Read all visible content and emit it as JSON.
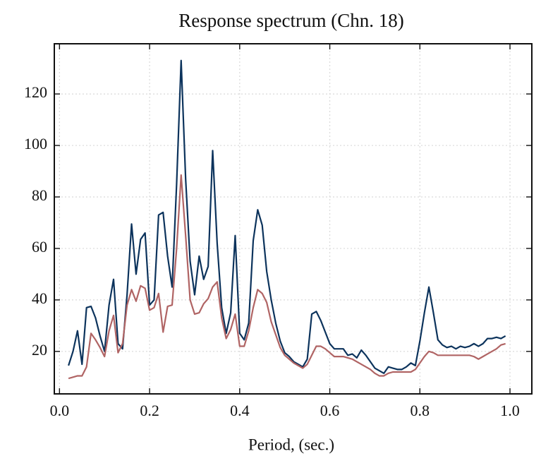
{
  "chart_data": {
    "type": "line",
    "title": "Response spectrum (Chn. 18)",
    "x_label": "Period, (sec.)",
    "x": [
      0.02,
      0.03,
      0.04,
      0.05,
      0.06,
      0.07,
      0.08,
      0.09,
      0.1,
      0.11,
      0.12,
      0.13,
      0.14,
      0.15,
      0.16,
      0.17,
      0.18,
      0.19,
      0.2,
      0.21,
      0.22,
      0.23,
      0.24,
      0.25,
      0.26,
      0.27,
      0.28,
      0.29,
      0.3,
      0.31,
      0.32,
      0.33,
      0.34,
      0.35,
      0.36,
      0.37,
      0.38,
      0.39,
      0.4,
      0.41,
      0.42,
      0.43,
      0.44,
      0.45,
      0.46,
      0.47,
      0.48,
      0.49,
      0.5,
      0.51,
      0.52,
      0.53,
      0.54,
      0.55,
      0.56,
      0.57,
      0.58,
      0.59,
      0.6,
      0.61,
      0.62,
      0.63,
      0.64,
      0.65,
      0.66,
      0.67,
      0.68,
      0.69,
      0.7,
      0.71,
      0.72,
      0.73,
      0.74,
      0.75,
      0.76,
      0.77,
      0.78,
      0.79,
      0.8,
      0.81,
      0.82,
      0.83,
      0.84,
      0.85,
      0.86,
      0.87,
      0.88,
      0.89,
      0.9,
      0.91,
      0.92,
      0.93,
      0.94,
      0.95,
      0.96,
      0.97,
      0.98,
      0.99
    ],
    "series": [
      {
        "color": "#0c335c",
        "values": [
          14.5,
          20,
          28,
          15,
          37,
          37.5,
          33,
          26,
          20,
          38,
          48,
          23,
          21,
          42,
          69.5,
          50,
          63.5,
          66,
          38,
          40,
          73,
          74,
          57,
          45,
          85,
          133,
          87,
          55,
          42,
          57,
          48,
          53,
          98,
          62,
          37,
          27,
          35,
          65,
          27,
          24.5,
          31,
          63,
          75,
          69,
          51,
          40,
          31,
          24,
          19.5,
          18,
          16,
          15,
          14,
          17,
          34.5,
          35.5,
          32,
          27.5,
          23,
          21,
          21,
          21,
          18.5,
          19,
          17.5,
          20.5,
          18.5,
          16,
          13.5,
          12.5,
          11.5,
          14,
          13.5,
          13,
          13,
          14,
          15.5,
          14.5,
          24,
          35,
          45,
          35,
          24.5,
          22.5,
          21.5,
          22,
          21,
          22,
          21.5,
          22,
          23,
          22,
          23,
          25,
          25,
          25.5,
          25,
          26
        ]
      },
      {
        "color": "#b06464",
        "values": [
          9.5,
          10,
          10.5,
          10.5,
          14,
          27,
          24.5,
          21.5,
          18,
          28,
          34,
          19.5,
          23,
          38,
          44,
          39.5,
          45.5,
          44.5,
          36,
          37,
          42.5,
          27.5,
          37.5,
          38,
          60,
          88.5,
          65,
          40,
          34.5,
          35,
          38.5,
          40.5,
          45,
          47,
          33,
          25,
          28.5,
          34.5,
          22,
          22,
          28,
          37,
          44,
          42.5,
          39,
          31.5,
          26.5,
          21.5,
          18.5,
          17,
          15.5,
          14.5,
          13.5,
          15,
          18.5,
          22,
          22,
          21,
          19.5,
          18,
          18,
          18,
          17.5,
          17,
          16,
          15,
          14,
          13,
          11.5,
          10.5,
          10.5,
          11.5,
          12,
          12,
          12,
          12,
          12,
          13,
          15.5,
          18,
          20,
          19.5,
          18.5,
          18.5,
          18.5,
          18.5,
          18.5,
          18.5,
          18.5,
          18.5,
          18,
          17,
          18,
          19,
          20,
          21,
          22.5,
          23
        ]
      }
    ],
    "xlim": [
      -0.0115,
      1.0485
    ],
    "ylim": [
      3.5,
      139.5
    ],
    "xticks": [
      {
        "value": 0,
        "label": "0.0"
      },
      0.2,
      0.4,
      0.6,
      0.8,
      {
        "value": 1,
        "label": "1.0"
      }
    ],
    "yticks": [
      20,
      40,
      60,
      80,
      100,
      120
    ],
    "grid": true
  }
}
